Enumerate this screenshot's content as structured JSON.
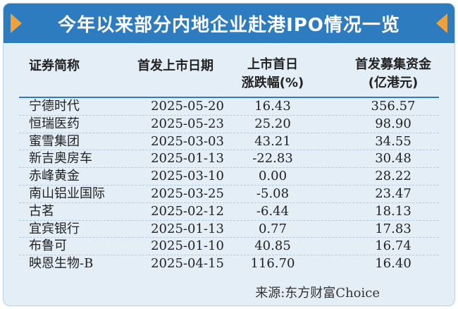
{
  "title": "今年以来部分内地企业赴港IPO情况一览",
  "header": {
    "col1": "证券简称",
    "col2": "首发上市日期",
    "col3_line1": "上市首日",
    "col3_line2": "涨跌幅(%)",
    "col4_line1": "首发募集资金",
    "col4_line2": "(亿港元)"
  },
  "rows": [
    {
      "name": "宁德时代",
      "date": "2025-05-20",
      "change": "16.43",
      "funds": "356.57"
    },
    {
      "name": "恒瑞医药",
      "date": "2025-05-23",
      "change": "25.20",
      "funds": "98.90"
    },
    {
      "name": "蜜雪集团",
      "date": "2025-03-03",
      "change": "43.21",
      "funds": "34.55"
    },
    {
      "name": "新吉奥房车",
      "date": "2025-01-13",
      "change": "-22.83",
      "funds": "30.48"
    },
    {
      "name": "赤峰黄金",
      "date": "2025-03-10",
      "change": "0.00",
      "funds": "28.22"
    },
    {
      "name": "南山铝业国际",
      "date": "2025-03-25",
      "change": "-5.08",
      "funds": "23.47"
    },
    {
      "name": "古茗",
      "date": "2025-02-12",
      "change": "-6.44",
      "funds": "18.13"
    },
    {
      "name": "宜宾银行",
      "date": "2025-01-13",
      "change": "0.77",
      "funds": "17.83"
    },
    {
      "name": "布鲁可",
      "date": "2025-01-10",
      "change": "40.85",
      "funds": "16.74"
    },
    {
      "name": "映恩生物-B",
      "date": "2025-04-15",
      "change": "116.70",
      "funds": "16.40"
    }
  ],
  "source": "来源:东方财富Choice",
  "colors": {
    "banner": "#2e7cc0",
    "background": "#e4eef7",
    "arrow": "#f0a23a"
  }
}
